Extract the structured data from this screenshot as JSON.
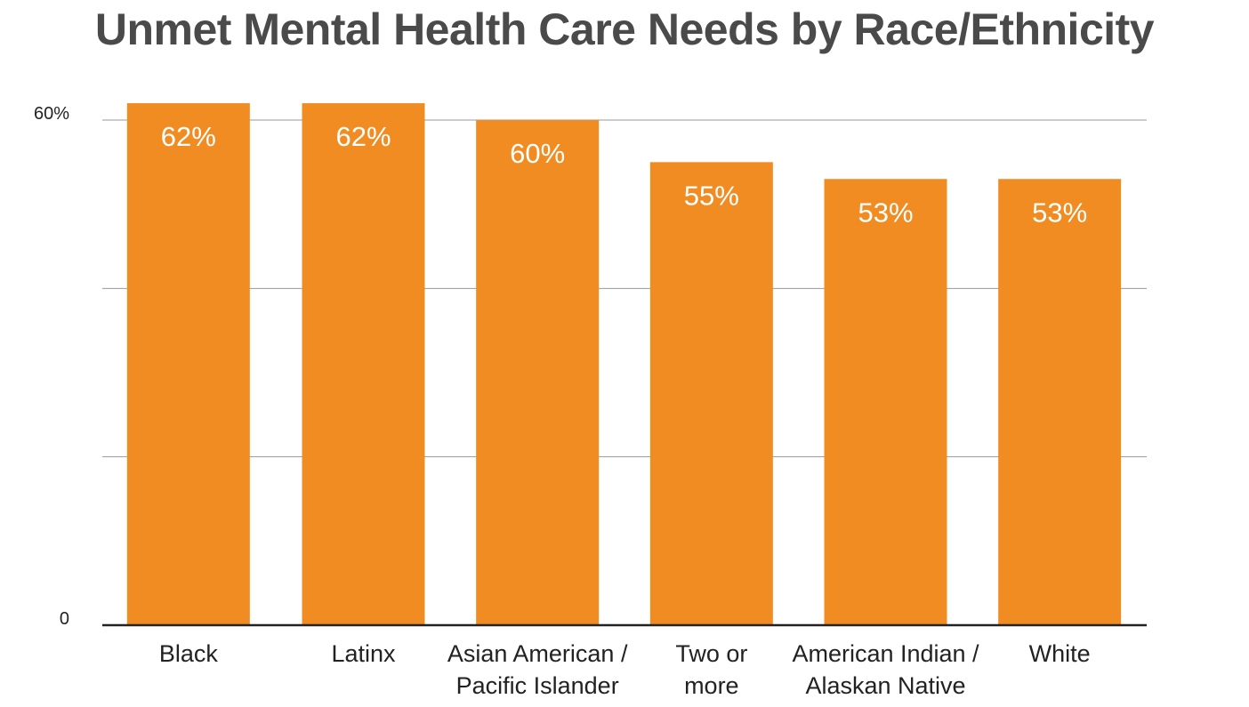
{
  "chart_data": {
    "type": "bar",
    "title": "Unmet Mental Health Care Needs by Race/Ethnicity",
    "categories": [
      [
        "Black"
      ],
      [
        "Latinx"
      ],
      [
        "Asian American /",
        "Pacific Islander"
      ],
      [
        "Two or",
        "more"
      ],
      [
        "American Indian /",
        "Alaskan Native"
      ],
      [
        "White"
      ]
    ],
    "values": [
      62,
      62,
      60,
      55,
      53,
      53
    ],
    "data_labels": [
      "62%",
      "62%",
      "60%",
      "55%",
      "53%",
      "53%"
    ],
    "ylim": [
      0,
      60
    ],
    "y_tick_labels": [
      {
        "value": 0,
        "label": "0"
      },
      {
        "value": 60,
        "label": "60%"
      }
    ],
    "gridlines": [
      20,
      40,
      60
    ],
    "grid": true,
    "bar_color": "#f08c22"
  }
}
